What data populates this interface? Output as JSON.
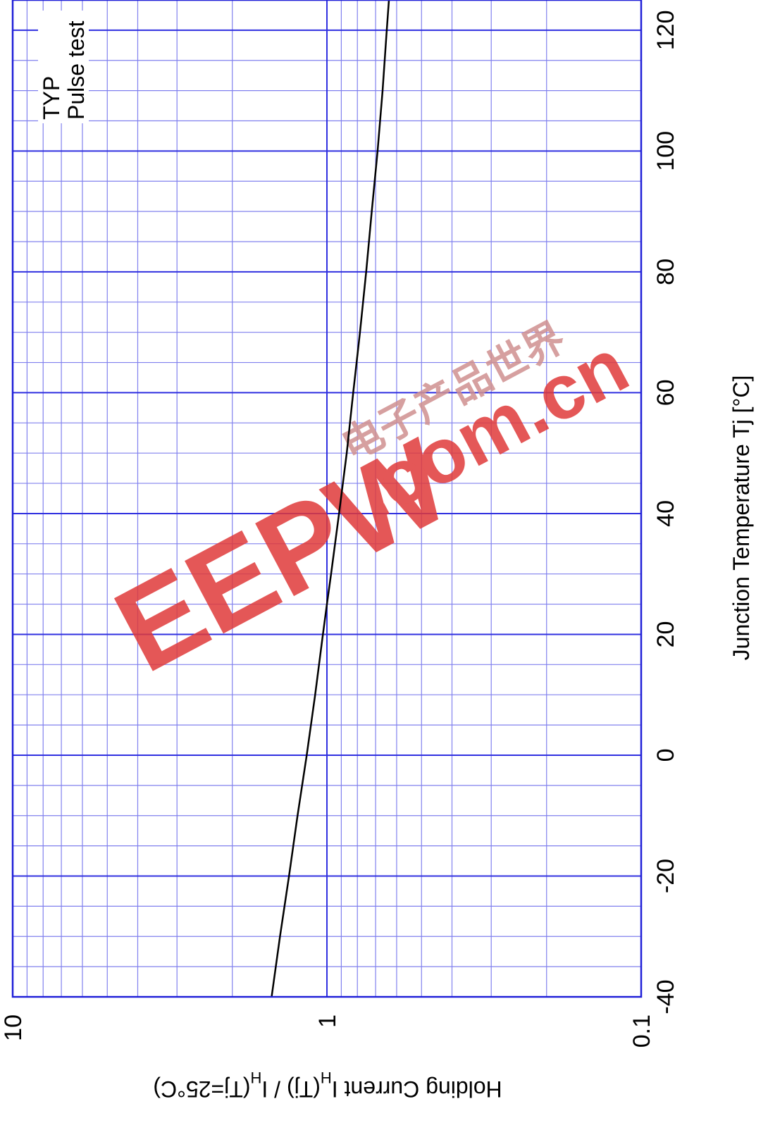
{
  "chart_data": {
    "type": "line",
    "orientation": "rotated-90-clockwise",
    "xlabel": "Junction Temperature   Tj  [°C]",
    "ylabel": {
      "prefix": "Holding Current   I",
      "sub1": "H",
      "mid": "(Tj) / I",
      "sub2": "H",
      "suffix": "(Tj=25°C)"
    },
    "x_ticks": [
      "-40",
      "-20",
      "0",
      "20",
      "40",
      "60",
      "80",
      "100",
      "120"
    ],
    "xlim": [
      -40,
      125
    ],
    "y_ticks": [
      "0.1",
      "1",
      "10"
    ],
    "ylim": [
      0.1,
      10
    ],
    "y_scale": "log",
    "grid": true,
    "annotations": [
      "TYP",
      "Pulse  test"
    ],
    "series": [
      {
        "x": [
          -40,
          -30,
          -20,
          -10,
          0,
          10,
          20,
          25,
          30,
          40,
          50,
          60,
          70,
          80,
          90,
          100,
          110,
          120,
          125
        ],
        "y": [
          1.5,
          1.41,
          1.32,
          1.24,
          1.16,
          1.09,
          1.03,
          1.0,
          0.97,
          0.915,
          0.865,
          0.825,
          0.785,
          0.75,
          0.72,
          0.69,
          0.665,
          0.645,
          0.635
        ]
      }
    ],
    "colors": {
      "grid": "#3030e0",
      "grid_minor": "#8080ee",
      "curve": "#000000",
      "watermark": "#e03a3a"
    }
  },
  "watermark": {
    "logo": "EEPW",
    "domain": ".com.cn",
    "cn": "电子产品世界"
  }
}
